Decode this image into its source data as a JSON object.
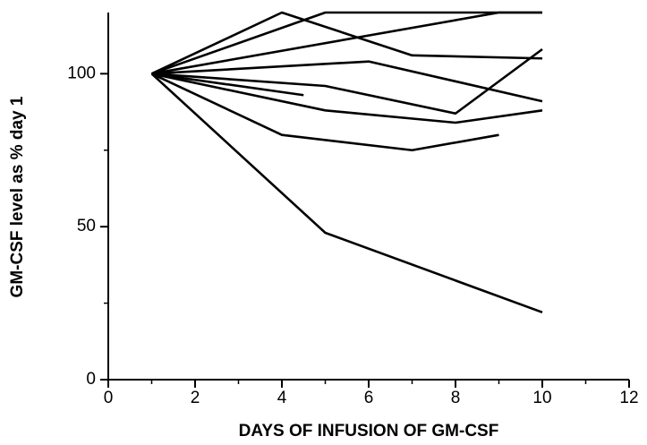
{
  "chart_data": {
    "type": "line",
    "xlabel": "DAYS OF INFUSION OF GM-CSF",
    "ylabel": "GM-CSF level as % day 1",
    "xlim": [
      0,
      12
    ],
    "xticks": [
      0,
      2,
      4,
      6,
      8,
      10,
      12
    ],
    "xminor": [
      1,
      3,
      5,
      7,
      9,
      11
    ],
    "ylim": [
      0,
      120
    ],
    "yticks": [
      0,
      50,
      100
    ],
    "yminor": [
      25,
      75
    ],
    "grid": false,
    "series": [
      {
        "color": "#000000",
        "x": [
          1,
          4,
          7,
          10
        ],
        "values": [
          100,
          120,
          106,
          105
        ]
      },
      {
        "color": "#000000",
        "x": [
          1,
          5,
          10
        ],
        "values": [
          100,
          120,
          120
        ]
      },
      {
        "color": "#000000",
        "x": [
          1,
          9,
          10
        ],
        "values": [
          100,
          120,
          120
        ]
      },
      {
        "color": "#000000",
        "x": [
          1,
          6,
          10
        ],
        "values": [
          100,
          104,
          91
        ]
      },
      {
        "color": "#000000",
        "x": [
          1,
          5,
          8,
          10
        ],
        "values": [
          100,
          96,
          87,
          108
        ]
      },
      {
        "color": "#000000",
        "x": [
          1,
          4.5
        ],
        "values": [
          100,
          93
        ]
      },
      {
        "color": "#000000",
        "x": [
          1,
          5,
          8,
          10
        ],
        "values": [
          100,
          88,
          84,
          88
        ]
      },
      {
        "color": "#000000",
        "x": [
          1,
          4,
          7,
          9
        ],
        "values": [
          100,
          80,
          75,
          80
        ]
      },
      {
        "color": "#000000",
        "x": [
          1,
          5,
          10
        ],
        "values": [
          100,
          48,
          22
        ]
      }
    ]
  }
}
